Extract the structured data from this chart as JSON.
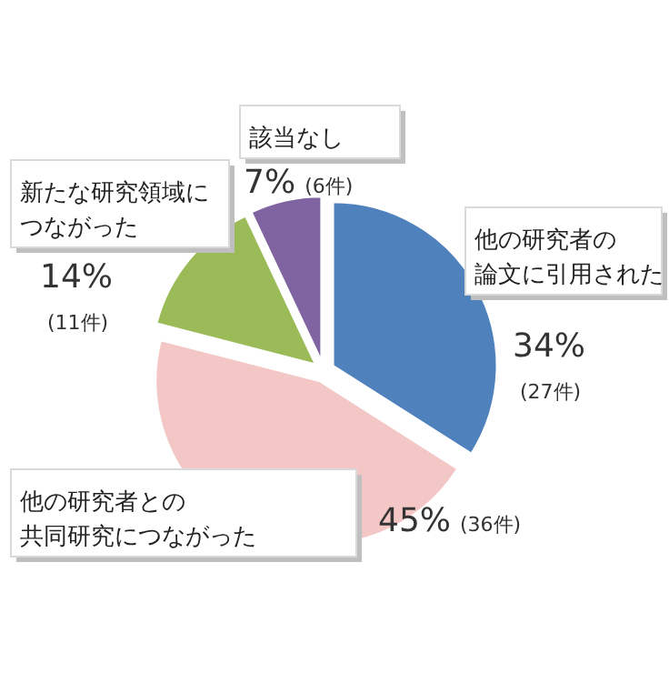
{
  "chart_data": {
    "type": "pie",
    "categories": [
      "他の研究者の論文に引用された",
      "他の研究者との共同研究につながった",
      "新たな研究領域につながった",
      "該当なし"
    ],
    "values": [
      34,
      45,
      14,
      7
    ],
    "colors": [
      "#4f81bd",
      "#f4c7c7",
      "#9bbb59",
      "#8064a2"
    ],
    "value_labels": [
      "34% (27件)",
      "45% (36件)",
      "14% (11件)",
      "7% (6件)"
    ]
  }
}
